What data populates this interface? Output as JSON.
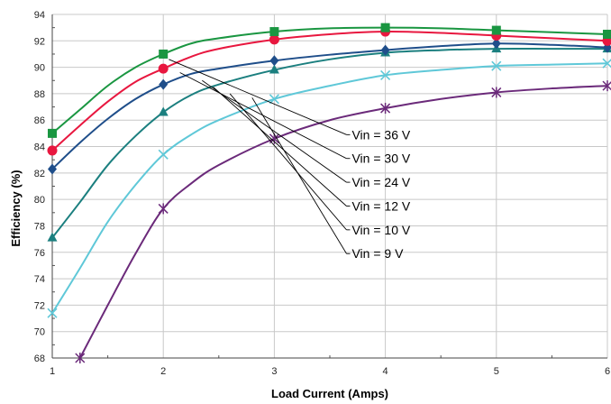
{
  "chart_data": {
    "type": "line",
    "title": "",
    "xlabel": "Load Current (Amps)",
    "ylabel": "Efficiency (%)",
    "xlim": [
      1,
      6
    ],
    "ylim": [
      68,
      94
    ],
    "x_ticks": [
      "1",
      "2",
      "3",
      "4",
      "5",
      "6"
    ],
    "y_ticks": [
      "68",
      "70",
      "72",
      "74",
      "76",
      "78",
      "80",
      "82",
      "84",
      "86",
      "88",
      "90",
      "92",
      "94"
    ],
    "grid": true,
    "series": [
      {
        "name": "Vin = 36 V",
        "color": "#1a9641",
        "marker": "square",
        "markers_x": [
          1,
          2,
          3,
          4,
          5,
          6
        ],
        "markers_y": [
          85.0,
          91.0,
          92.7,
          93.0,
          92.8,
          92.5
        ],
        "x": [
          1,
          1.25,
          1.5,
          1.75,
          2,
          2.25,
          2.5,
          3,
          3.5,
          4,
          4.5,
          5,
          5.5,
          6
        ],
        "y": [
          85.0,
          86.8,
          88.6,
          90.0,
          91.0,
          91.8,
          92.2,
          92.7,
          92.95,
          93.0,
          92.95,
          92.8,
          92.65,
          92.5
        ]
      },
      {
        "name": "Vin = 30 V",
        "color": "#e8173f",
        "marker": "circle",
        "markers_x": [
          1,
          2,
          3,
          4,
          5,
          6
        ],
        "markers_y": [
          83.7,
          89.9,
          92.1,
          92.7,
          92.4,
          92.0
        ],
        "x": [
          1,
          1.25,
          1.5,
          1.75,
          2,
          2.25,
          2.5,
          3,
          3.5,
          4,
          4.5,
          5,
          5.5,
          6
        ],
        "y": [
          83.7,
          85.6,
          87.4,
          88.9,
          89.9,
          90.8,
          91.4,
          92.1,
          92.5,
          92.7,
          92.6,
          92.4,
          92.2,
          92.0
        ]
      },
      {
        "name": "Vin = 24 V",
        "color": "#1f4e8a",
        "marker": "diamond",
        "markers_x": [
          1,
          2,
          3,
          4,
          5,
          6
        ],
        "markers_y": [
          82.3,
          88.7,
          90.5,
          91.3,
          91.8,
          91.5
        ],
        "x": [
          1,
          1.25,
          1.5,
          1.75,
          2,
          2.25,
          2.5,
          3,
          3.5,
          4,
          4.5,
          5,
          5.5,
          6
        ],
        "y": [
          82.3,
          84.3,
          86.1,
          87.6,
          88.7,
          89.5,
          89.9,
          90.5,
          90.95,
          91.3,
          91.6,
          91.8,
          91.7,
          91.5
        ]
      },
      {
        "name": "Vin = 12 V",
        "color": "#1b7f7f",
        "marker": "triangle",
        "markers_x": [
          1,
          2,
          3,
          4,
          5,
          6
        ],
        "markers_y": [
          77.1,
          86.6,
          89.8,
          91.1,
          91.4,
          91.4
        ],
        "x": [
          1,
          1.25,
          1.5,
          1.75,
          2,
          2.25,
          2.5,
          3,
          3.5,
          4,
          4.5,
          5,
          5.5,
          6
        ],
        "y": [
          77.1,
          79.8,
          82.6,
          84.8,
          86.6,
          87.9,
          88.7,
          89.8,
          90.6,
          91.1,
          91.3,
          91.4,
          91.4,
          91.4
        ]
      },
      {
        "name": "Vin = 10 V",
        "color": "#5fc8d8",
        "marker": "x",
        "markers_x": [
          1,
          2,
          3,
          4,
          5,
          6
        ],
        "markers_y": [
          71.4,
          83.4,
          87.6,
          89.4,
          90.1,
          90.3
        ],
        "x": [
          1,
          1.25,
          1.5,
          1.75,
          2,
          2.25,
          2.5,
          3,
          3.5,
          4,
          4.5,
          5,
          5.5,
          6
        ],
        "y": [
          71.4,
          74.8,
          78.3,
          81.1,
          83.4,
          84.9,
          86.0,
          87.6,
          88.6,
          89.4,
          89.8,
          90.1,
          90.2,
          90.3
        ]
      },
      {
        "name": "Vin = 9 V",
        "color": "#6b2a7a",
        "marker": "asterisk",
        "markers_x": [
          1.25,
          2,
          3,
          4,
          5,
          6
        ],
        "markers_y": [
          68.0,
          79.3,
          84.6,
          86.9,
          88.1,
          88.6
        ],
        "x": [
          1.25,
          1.5,
          1.75,
          2,
          2.25,
          2.5,
          3,
          3.5,
          4,
          4.5,
          5,
          5.5,
          6
        ],
        "y": [
          68.0,
          72.0,
          75.9,
          79.3,
          81.2,
          82.6,
          84.6,
          86.0,
          86.9,
          87.6,
          88.1,
          88.4,
          88.6
        ]
      }
    ],
    "annotations": [
      {
        "label": "Vin = 36 V",
        "from": [
          2.05,
          90.6
        ],
        "to": [
          3.65,
          84.9
        ]
      },
      {
        "label": "Vin = 30 V",
        "from": [
          2.15,
          89.6
        ],
        "to": [
          3.65,
          83.1
        ]
      },
      {
        "label": "Vin = 24 V",
        "from": [
          2.35,
          89.0
        ],
        "to": [
          3.65,
          81.3
        ]
      },
      {
        "label": "Vin = 12 V",
        "from": [
          2.45,
          88.5
        ],
        "to": [
          3.65,
          79.5
        ]
      },
      {
        "label": "Vin = 10 V",
        "from": [
          2.6,
          88.0
        ],
        "to": [
          3.65,
          77.7
        ]
      },
      {
        "label": "Vin = 9 V",
        "from": [
          2.8,
          87.7
        ],
        "to": [
          3.65,
          75.9
        ]
      }
    ]
  }
}
